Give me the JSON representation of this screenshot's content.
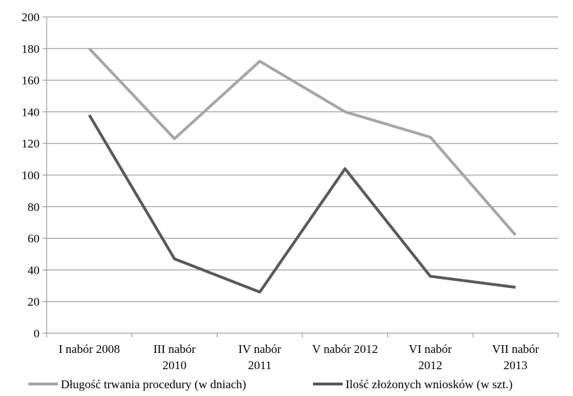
{
  "chart_data": {
    "type": "line",
    "categories": [
      [
        "I nabór 2008"
      ],
      [
        "III nabór",
        "2010"
      ],
      [
        "IV nabór",
        "2011"
      ],
      [
        "V nabór 2012"
      ],
      [
        "VI nabór",
        "2012"
      ],
      [
        "VII nabór",
        "2013"
      ]
    ],
    "series": [
      {
        "name": "Długość trwania procedury (w dniach)",
        "color": "#a6a6a6",
        "values": [
          180,
          123,
          172,
          140,
          124,
          62
        ]
      },
      {
        "name": "Ilość złożonych wniosków (w szt.)",
        "color": "#595959",
        "values": [
          138,
          47,
          26,
          104,
          36,
          29
        ]
      }
    ],
    "ylim": [
      0,
      200
    ],
    "yticks": [
      0,
      20,
      40,
      60,
      80,
      100,
      120,
      140,
      160,
      180,
      200
    ],
    "grid": true,
    "legend": "bottom",
    "title": "",
    "xlabel": "",
    "ylabel": ""
  }
}
